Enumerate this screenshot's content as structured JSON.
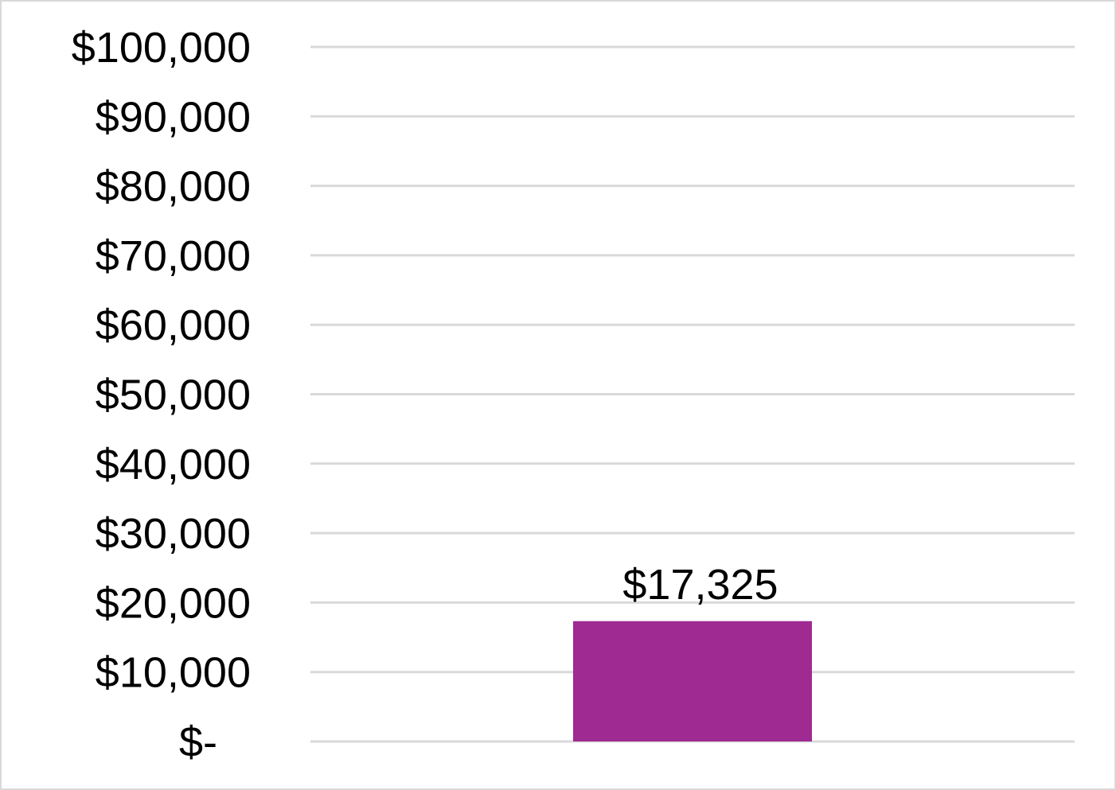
{
  "chart_data": {
    "type": "bar",
    "title": "",
    "xlabel": "",
    "ylabel": "",
    "categories": [
      ""
    ],
    "values": [
      17325
    ],
    "data_labels": [
      "$17,325"
    ],
    "ylim": [
      0,
      100000
    ],
    "yticks": [
      0,
      10000,
      20000,
      30000,
      40000,
      50000,
      60000,
      70000,
      80000,
      90000,
      100000
    ],
    "ytick_labels": [
      "$-",
      "$10,000",
      "$20,000",
      "$30,000",
      "$40,000",
      "$50,000",
      "$60,000",
      "$70,000",
      "$80,000",
      "$90,000",
      "$100,000"
    ],
    "grid": true,
    "legend": "none",
    "colors": {
      "bar": "#9e2a92",
      "grid": "#d9d9d9",
      "text": "#000000",
      "border": "#d9d9d9"
    }
  }
}
